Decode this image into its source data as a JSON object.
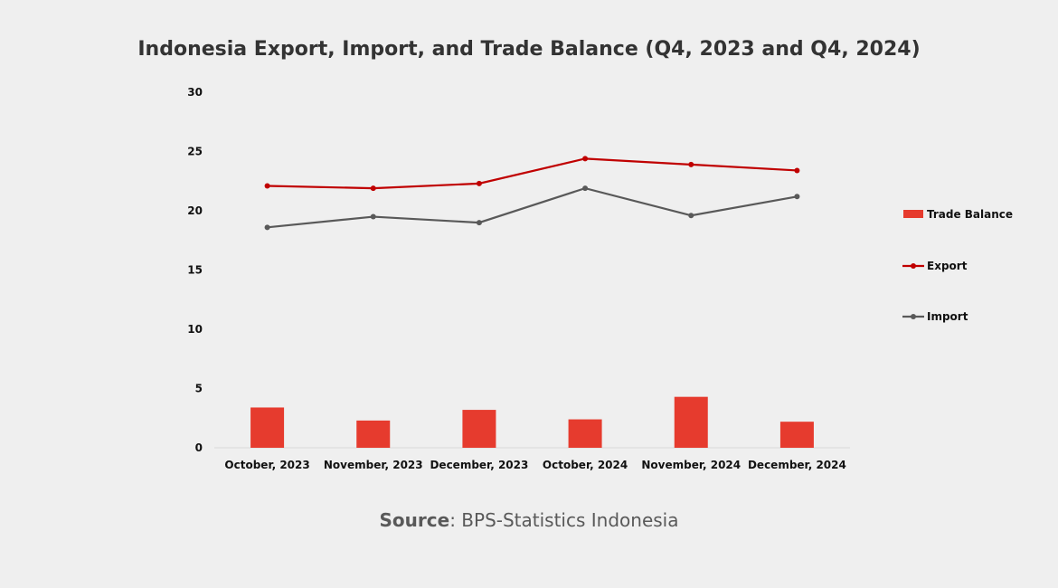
{
  "chart_data": {
    "type": "bar+line",
    "title": "Indonesia Export, Import, and Trade Balance (Q4, 2023 and Q4, 2024)",
    "categories": [
      "October, 2023",
      "November, 2023",
      "December, 2023",
      "October, 2024",
      "November, 2024",
      "December, 2024"
    ],
    "series": [
      {
        "name": "Trade Balance",
        "type": "bar",
        "color": "#e63b2e",
        "values": [
          3.4,
          2.3,
          3.2,
          2.4,
          4.3,
          2.2
        ]
      },
      {
        "name": "Export",
        "type": "line",
        "color": "#c00000",
        "values": [
          22.1,
          21.9,
          22.3,
          24.4,
          23.9,
          23.4
        ]
      },
      {
        "name": "Import",
        "type": "line",
        "color": "#595959",
        "values": [
          18.6,
          19.5,
          19.0,
          21.9,
          19.6,
          21.2
        ]
      }
    ],
    "yticks": [
      0,
      5,
      10,
      15,
      20,
      25,
      30
    ],
    "ylim": [
      0,
      30
    ],
    "grid": false,
    "legend_position": "right"
  },
  "source": {
    "label": "Source",
    "text": ": BPS-Statistics Indonesia"
  }
}
